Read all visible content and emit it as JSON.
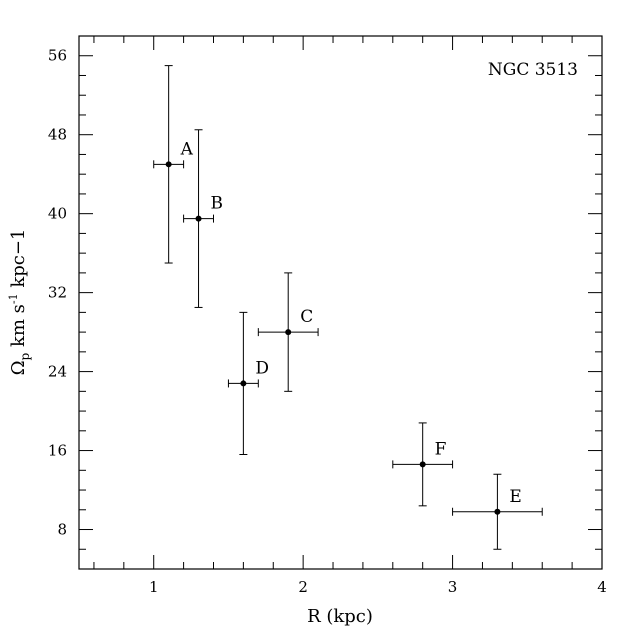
{
  "chart_data": {
    "type": "scatter",
    "title": "NGC 3513",
    "xlabel": "R (kpc)",
    "ylabel": {
      "base": "Ω",
      "base_sub": "p",
      "middle": " km s",
      "exponent": "-1",
      "tail": " kpc−1"
    },
    "xlim": [
      0.5,
      4
    ],
    "ylim": [
      4,
      58
    ],
    "x_ticks": [
      {
        "value": 1,
        "label": "1"
      },
      {
        "value": 2,
        "label": "2"
      },
      {
        "value": 3,
        "label": "3"
      },
      {
        "value": 4,
        "label": "4"
      }
    ],
    "y_ticks": [
      {
        "value": 8,
        "label": "8"
      },
      {
        "value": 16,
        "label": "16"
      },
      {
        "value": 24,
        "label": "24"
      },
      {
        "value": 32,
        "label": "32"
      },
      {
        "value": 40,
        "label": "40"
      },
      {
        "value": 48,
        "label": "48"
      },
      {
        "value": 56,
        "label": "56"
      }
    ],
    "x_minor_step": 0.2,
    "y_minor_step": 2,
    "grid": false,
    "legend": "none",
    "points": [
      {
        "label": "A",
        "x": 1.1,
        "y": 45.0,
        "xerr": 0.1,
        "yerr_low": 10.0,
        "yerr_high": 10.0
      },
      {
        "label": "B",
        "x": 1.3,
        "y": 39.5,
        "xerr": 0.1,
        "yerr_low": 9.0,
        "yerr_high": 9.0
      },
      {
        "label": "D",
        "x": 1.6,
        "y": 22.8,
        "xerr": 0.1,
        "yerr_low": 7.2,
        "yerr_high": 7.2
      },
      {
        "label": "C",
        "x": 1.9,
        "y": 28.0,
        "xerr": 0.2,
        "yerr_low": 6.0,
        "yerr_high": 6.0
      },
      {
        "label": "F",
        "x": 2.8,
        "y": 14.6,
        "xerr": 0.2,
        "yerr_low": 4.2,
        "yerr_high": 4.2
      },
      {
        "label": "E",
        "x": 3.3,
        "y": 9.8,
        "xerr": 0.3,
        "yerr_low": 3.8,
        "yerr_high": 3.8
      }
    ]
  }
}
